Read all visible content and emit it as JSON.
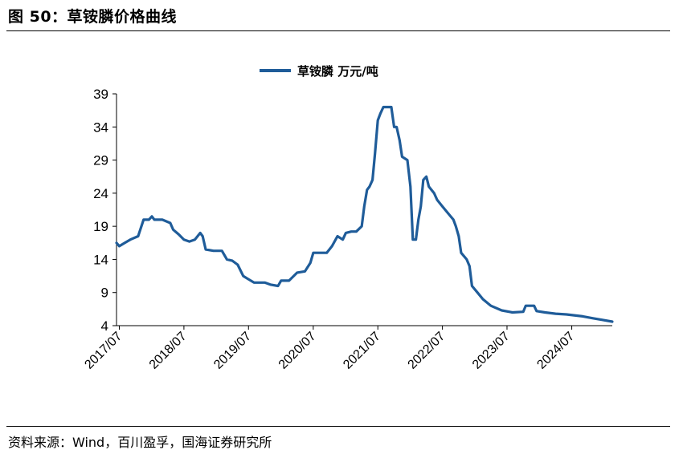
{
  "figure": {
    "title": "图 50：草铵膦价格曲线",
    "source": "资料来源：Wind，百川盈孚，国海证券研究所"
  },
  "chart_data": {
    "type": "line",
    "title": "",
    "xlabel": "",
    "ylabel": "",
    "ylim": [
      4,
      39
    ],
    "yticks": [
      4,
      9,
      14,
      19,
      24,
      29,
      34,
      39
    ],
    "xlim": [
      "2017-06-15",
      "2025-02-15"
    ],
    "xticks": [
      "2017/07",
      "2018/07",
      "2019/07",
      "2020/07",
      "2021/07",
      "2022/07",
      "2023/07",
      "2024/07"
    ],
    "legend_position": "top-center",
    "grid": false,
    "color": "#1F5C99",
    "series": [
      {
        "name": "草铵膦 万元/吨",
        "points": [
          [
            "2017-06-15",
            16.5
          ],
          [
            "2017-07-01",
            16.0
          ],
          [
            "2017-08-01",
            16.5
          ],
          [
            "2017-09-01",
            17.0
          ],
          [
            "2017-10-15",
            17.5
          ],
          [
            "2017-11-15",
            20.0
          ],
          [
            "2017-12-15",
            20.0
          ],
          [
            "2018-01-01",
            20.5
          ],
          [
            "2018-01-15",
            20.0
          ],
          [
            "2018-03-01",
            20.0
          ],
          [
            "2018-04-15",
            19.5
          ],
          [
            "2018-05-01",
            18.5
          ],
          [
            "2018-06-01",
            17.8
          ],
          [
            "2018-07-01",
            17.0
          ],
          [
            "2018-08-01",
            16.7
          ],
          [
            "2018-09-01",
            17.0
          ],
          [
            "2018-10-01",
            18.0
          ],
          [
            "2018-10-15",
            17.5
          ],
          [
            "2018-11-01",
            15.5
          ],
          [
            "2018-12-15",
            15.3
          ],
          [
            "2019-02-01",
            15.3
          ],
          [
            "2019-03-01",
            14.0
          ],
          [
            "2019-04-01",
            13.8
          ],
          [
            "2019-05-01",
            13.2
          ],
          [
            "2019-06-01",
            11.5
          ],
          [
            "2019-07-01",
            11.0
          ],
          [
            "2019-08-01",
            10.5
          ],
          [
            "2019-10-01",
            10.5
          ],
          [
            "2019-11-01",
            10.2
          ],
          [
            "2019-12-15",
            10.0
          ],
          [
            "2020-01-01",
            10.8
          ],
          [
            "2020-02-15",
            10.8
          ],
          [
            "2020-04-01",
            12.0
          ],
          [
            "2020-05-15",
            12.2
          ],
          [
            "2020-06-15",
            13.5
          ],
          [
            "2020-07-01",
            15.0
          ],
          [
            "2020-08-01",
            15.0
          ],
          [
            "2020-09-15",
            15.0
          ],
          [
            "2020-10-15",
            16.0
          ],
          [
            "2020-11-15",
            17.5
          ],
          [
            "2020-12-15",
            17.0
          ],
          [
            "2021-01-01",
            18.0
          ],
          [
            "2021-02-01",
            18.2
          ],
          [
            "2021-03-01",
            18.2
          ],
          [
            "2021-04-01",
            19.0
          ],
          [
            "2021-04-15",
            22.0
          ],
          [
            "2021-05-01",
            24.5
          ],
          [
            "2021-05-15",
            25.0
          ],
          [
            "2021-06-01",
            26.0
          ],
          [
            "2021-06-15",
            30.0
          ],
          [
            "2021-07-01",
            35.0
          ],
          [
            "2021-07-15",
            36.0
          ],
          [
            "2021-08-01",
            37.0
          ],
          [
            "2021-09-15",
            37.0
          ],
          [
            "2021-10-01",
            34.0
          ],
          [
            "2021-10-15",
            34.0
          ],
          [
            "2021-11-01",
            32.0
          ],
          [
            "2021-11-15",
            29.5
          ],
          [
            "2021-12-15",
            29.0
          ],
          [
            "2022-01-01",
            25.0
          ],
          [
            "2022-01-15",
            17.0
          ],
          [
            "2022-02-01",
            17.0
          ],
          [
            "2022-02-15",
            20.0
          ],
          [
            "2022-03-01",
            22.0
          ],
          [
            "2022-03-15",
            26.0
          ],
          [
            "2022-04-01",
            26.5
          ],
          [
            "2022-04-15",
            25.0
          ],
          [
            "2022-05-15",
            24.0
          ],
          [
            "2022-06-01",
            23.0
          ],
          [
            "2022-07-01",
            22.0
          ],
          [
            "2022-08-01",
            21.0
          ],
          [
            "2022-09-01",
            20.0
          ],
          [
            "2022-09-15",
            19.0
          ],
          [
            "2022-10-01",
            17.5
          ],
          [
            "2022-10-15",
            15.0
          ],
          [
            "2022-11-15",
            14.0
          ],
          [
            "2022-12-01",
            13.0
          ],
          [
            "2022-12-15",
            10.0
          ],
          [
            "2023-01-15",
            9.0
          ],
          [
            "2023-02-15",
            8.0
          ],
          [
            "2023-04-01",
            7.0
          ],
          [
            "2023-06-01",
            6.3
          ],
          [
            "2023-08-01",
            6.0
          ],
          [
            "2023-10-01",
            6.1
          ],
          [
            "2023-10-15",
            7.0
          ],
          [
            "2023-12-01",
            7.0
          ],
          [
            "2023-12-15",
            6.2
          ],
          [
            "2024-02-01",
            6.0
          ],
          [
            "2024-04-01",
            5.8
          ],
          [
            "2024-06-01",
            5.7
          ],
          [
            "2024-09-01",
            5.4
          ],
          [
            "2024-11-01",
            5.1
          ],
          [
            "2024-12-15",
            4.9
          ],
          [
            "2025-02-15",
            4.6
          ]
        ]
      }
    ]
  }
}
